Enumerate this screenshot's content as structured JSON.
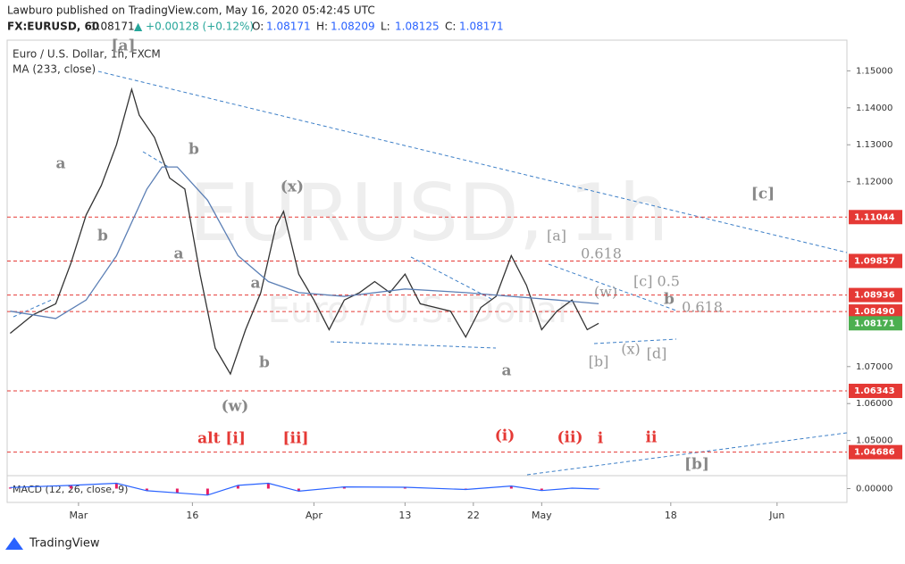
{
  "header": {
    "publisher": "Lawburo published on TradingView.com, May 16, 2020 05:42:45 UTC",
    "symbol": "FX:EURUSD, 60",
    "last": "1.08171",
    "change": "▲ +0.00128 (+0.12%)",
    "ohlc": [
      {
        "label": "O:",
        "value": "1.08171"
      },
      {
        "label": "H:",
        "value": "1.08209"
      },
      {
        "label": "L:",
        "value": "1.08125"
      },
      {
        "label": "C:",
        "value": "1.08171"
      }
    ]
  },
  "chart_data": {
    "type": "line",
    "legend_title": "Euro / U.S. Dollar, 1h, FXCM",
    "watermark": "EURUSD, 1h",
    "watermark_sub": "Euro / U.S. Dollar",
    "xlim": [
      51.6,
      162.2
    ],
    "ylim": [
      1.0405,
      1.1583
    ],
    "xticks": [
      {
        "value": 61,
        "label": "Mar"
      },
      {
        "value": 76,
        "label": "16"
      },
      {
        "value": 92,
        "label": "Apr"
      },
      {
        "value": 104,
        "label": "13"
      },
      {
        "value": 113,
        "label": "22"
      },
      {
        "value": 122,
        "label": "May"
      },
      {
        "value": 139,
        "label": "18"
      },
      {
        "value": 153,
        "label": "Jun"
      }
    ],
    "yticks": [
      {
        "value": 1.15,
        "label": "1.15000"
      },
      {
        "value": 1.14,
        "label": "1.14000"
      },
      {
        "value": 1.13,
        "label": "1.13000"
      },
      {
        "value": 1.12,
        "label": "1.12000"
      },
      {
        "value": 1.07,
        "label": "1.07000"
      },
      {
        "value": 1.06,
        "label": "1.06000"
      },
      {
        "value": 1.05,
        "label": "1.05000"
      }
    ],
    "series": [
      {
        "name": "Euro / U.S. Dollar",
        "color": "#333333",
        "x": [
          52,
          55,
          58,
          60,
          62,
          64,
          66,
          68,
          69,
          71,
          73,
          75,
          77,
          79,
          81,
          83,
          85,
          87,
          88,
          90,
          92,
          94,
          96,
          98,
          100,
          102,
          104,
          106,
          108,
          110,
          112,
          114,
          116,
          118,
          120,
          122,
          124,
          126,
          128,
          129.5
        ],
        "values": [
          1.079,
          1.084,
          1.087,
          1.098,
          1.111,
          1.119,
          1.13,
          1.145,
          1.138,
          1.132,
          1.121,
          1.118,
          1.095,
          1.075,
          1.068,
          1.08,
          1.09,
          1.108,
          1.112,
          1.095,
          1.088,
          1.08,
          1.088,
          1.09,
          1.093,
          1.09,
          1.095,
          1.087,
          1.086,
          1.085,
          1.078,
          1.086,
          1.089,
          1.1,
          1.092,
          1.08,
          1.085,
          1.088,
          1.08,
          1.08171
        ]
      },
      {
        "name": "MA (233, close)",
        "color": "#5b7fb5",
        "x": [
          52,
          58,
          62,
          66,
          70,
          72,
          74,
          78,
          82,
          86,
          90,
          96,
          104,
          112,
          118,
          124,
          129.5
        ],
        "values": [
          1.085,
          1.083,
          1.088,
          1.1,
          1.118,
          1.124,
          1.124,
          1.115,
          1.1,
          1.093,
          1.09,
          1.089,
          1.091,
          1.09,
          1.089,
          1.088,
          1.087
        ]
      }
    ],
    "levels": [
      {
        "value": 1.11044,
        "label": "1.11044"
      },
      {
        "value": 1.09857,
        "label": "1.09857"
      },
      {
        "value": 1.08936,
        "label": "1.08936"
      },
      {
        "value": 1.0849,
        "label": "1.08490"
      },
      {
        "value": 1.06343,
        "label": "1.06343"
      },
      {
        "value": 1.04686,
        "label": "1.04686"
      }
    ],
    "level_color": "#e53935",
    "last_price": {
      "value": 1.08171,
      "label": "1.08171",
      "color": "#4caf50"
    },
    "annotations": [
      "[a]",
      "a",
      "b",
      "b",
      "a",
      "(x)",
      "a",
      "b",
      "(w)",
      "alt [i]",
      "[ii]",
      "a",
      "(i)",
      "(ii)",
      "i",
      "ii",
      "[a]",
      "0.618",
      "(w)",
      "[c] 0.5",
      "b",
      "0.618",
      "[b]",
      "(x)",
      "[d]",
      "[c]",
      "[b]"
    ],
    "macd": {
      "name": "MACD (12, 26, close, 9)",
      "ylim": [
        -0.006,
        0.006
      ],
      "yticks": [
        {
          "value": 0,
          "label": "0.00000"
        }
      ],
      "x": [
        52,
        60,
        66,
        70,
        74,
        78,
        82,
        86,
        90,
        96,
        104,
        112,
        118,
        122,
        126,
        129.5
      ],
      "values": [
        0.0005,
        0.0015,
        0.0025,
        -0.001,
        -0.002,
        -0.003,
        0.0015,
        0.0025,
        -0.0012,
        0.0008,
        0.0006,
        -0.0004,
        0.0012,
        -0.0009,
        0.0002,
        -0.0002
      ],
      "color": "#2962ff",
      "hist_color": "#e91e63"
    }
  },
  "footer": {
    "brand": "TradingView"
  }
}
